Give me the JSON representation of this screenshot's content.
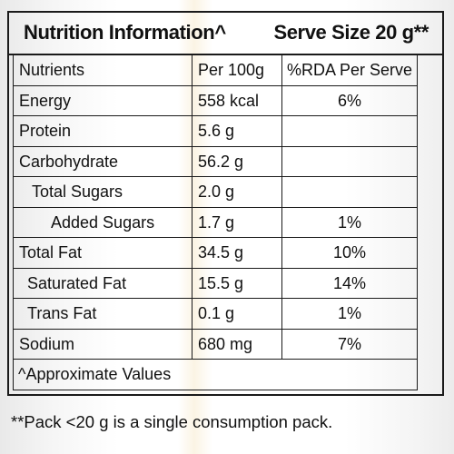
{
  "panel": {
    "title": "Nutrition Information^",
    "serve_size": "Serve Size 20 g**"
  },
  "table": {
    "headers": [
      "Nutrients",
      "Per 100g",
      "%RDA Per Serve"
    ],
    "rows": [
      {
        "nutrient": "Energy",
        "per100g": "558 kcal",
        "rda": "6%"
      },
      {
        "nutrient": "Protein",
        "per100g": "5.6 g",
        "rda": ""
      },
      {
        "nutrient": "Carbohydrate",
        "per100g": "56.2 g",
        "rda": ""
      },
      {
        "nutrient": "Total Sugars",
        "per100g": "2.0 g",
        "rda": ""
      },
      {
        "nutrient": "Added Sugars",
        "per100g": "1.7 g",
        "rda": "1%"
      },
      {
        "nutrient": "Total Fat",
        "per100g": "34.5 g",
        "rda": "10%"
      },
      {
        "nutrient": "Saturated Fat",
        "per100g": "15.5 g",
        "rda": "14%"
      },
      {
        "nutrient": "Trans Fat",
        "per100g": "0.1 g",
        "rda": "1%"
      },
      {
        "nutrient": "Sodium",
        "per100g": "680 mg",
        "rda": "7%"
      }
    ],
    "footnote": "^Approximate Values"
  },
  "bottom_note": "**Pack <20 g is a single consumption pack."
}
